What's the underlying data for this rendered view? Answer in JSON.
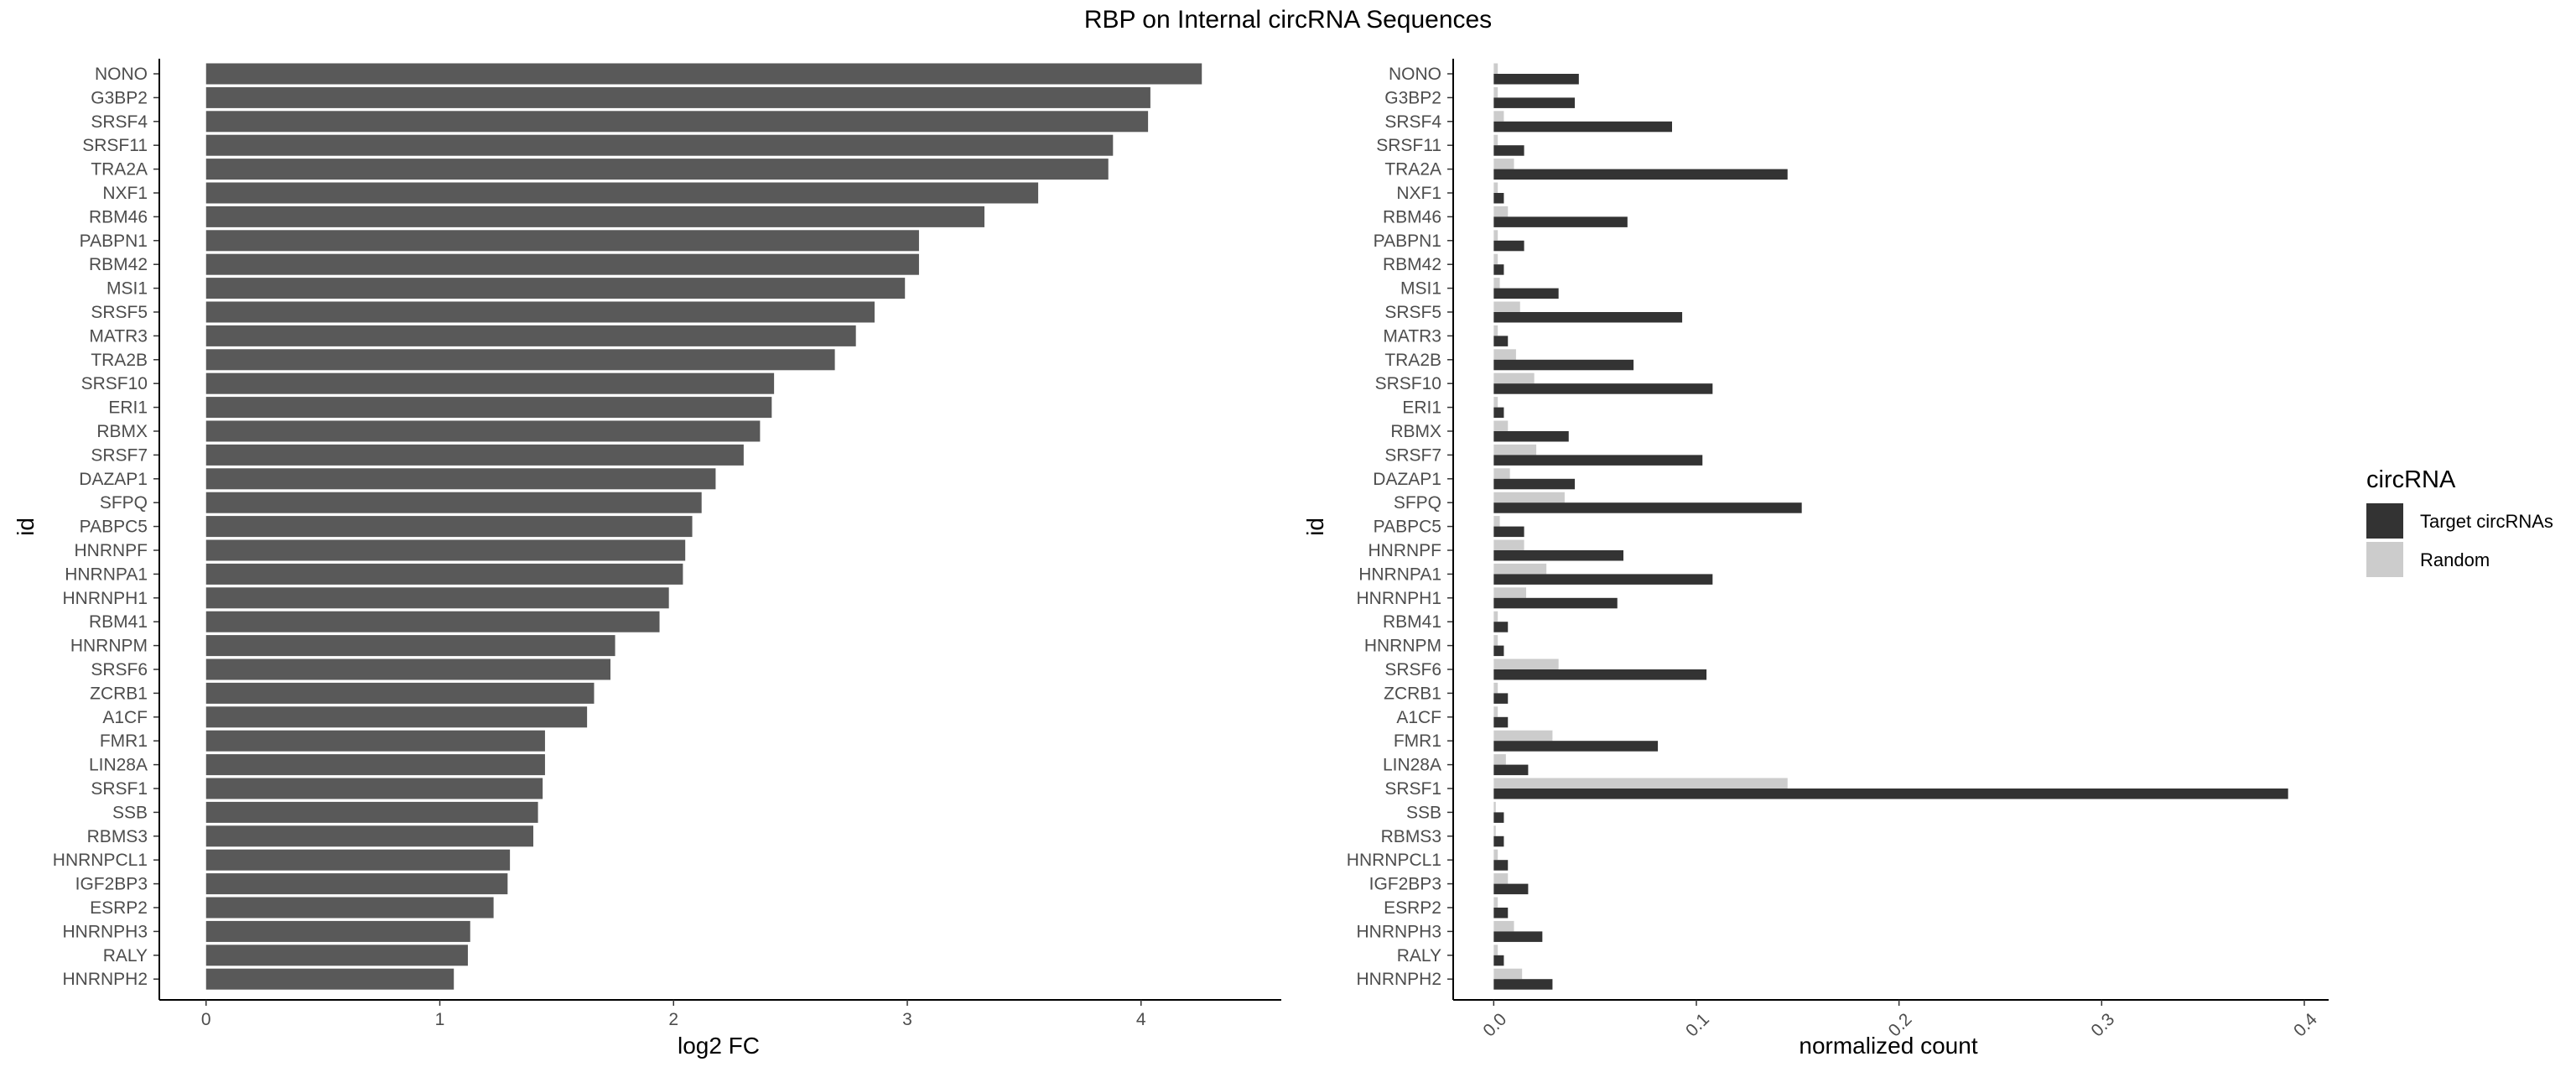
{
  "title": "RBP on Internal circRNA Sequences",
  "chart_data": [
    {
      "type": "bar",
      "orientation": "horizontal",
      "xlabel": "log2 FC",
      "ylabel": "id",
      "xlim": [
        -0.2,
        4.6
      ],
      "xticks": [
        0,
        1,
        2,
        3,
        4
      ],
      "grid": false,
      "bar_color": "#595959",
      "categories": [
        "NONO",
        "G3BP2",
        "SRSF4",
        "SRSF11",
        "TRA2A",
        "NXF1",
        "RBM46",
        "PABPN1",
        "RBM42",
        "MSI1",
        "SRSF5",
        "MATR3",
        "TRA2B",
        "SRSF10",
        "ERI1",
        "RBMX",
        "SRSF7",
        "DAZAP1",
        "SFPQ",
        "PABPC5",
        "HNRNPF",
        "HNRNPA1",
        "HNRNPH1",
        "RBM41",
        "HNRNPM",
        "SRSF6",
        "ZCRB1",
        "A1CF",
        "FMR1",
        "LIN28A",
        "SRSF1",
        "SSB",
        "RBMS3",
        "HNRNPCL1",
        "IGF2BP3",
        "ESRP2",
        "HNRNPH3",
        "RALY",
        "HNRNPH2"
      ],
      "values": [
        4.26,
        4.04,
        4.03,
        3.88,
        3.86,
        3.56,
        3.33,
        3.05,
        3.05,
        2.99,
        2.86,
        2.78,
        2.69,
        2.43,
        2.42,
        2.37,
        2.3,
        2.18,
        2.12,
        2.08,
        2.05,
        2.04,
        1.98,
        1.94,
        1.75,
        1.73,
        1.66,
        1.63,
        1.45,
        1.45,
        1.44,
        1.42,
        1.4,
        1.3,
        1.29,
        1.23,
        1.13,
        1.12,
        1.06
      ]
    },
    {
      "type": "bar",
      "orientation": "horizontal",
      "xlabel": "normalized count",
      "ylabel": "id",
      "xlim": [
        -0.02,
        0.412
      ],
      "xticks": [
        0.0,
        0.1,
        0.2,
        0.3,
        0.4
      ],
      "xtick_labels": [
        "0.0",
        "0.1",
        "0.2",
        "0.3",
        "0.4"
      ],
      "grid": false,
      "legend_position": "right",
      "legend_title": "circRNA",
      "categories": [
        "NONO",
        "G3BP2",
        "SRSF4",
        "SRSF11",
        "TRA2A",
        "NXF1",
        "RBM46",
        "PABPN1",
        "RBM42",
        "MSI1",
        "SRSF5",
        "MATR3",
        "TRA2B",
        "SRSF10",
        "ERI1",
        "RBMX",
        "SRSF7",
        "DAZAP1",
        "SFPQ",
        "PABPC5",
        "HNRNPF",
        "HNRNPA1",
        "HNRNPH1",
        "RBM41",
        "HNRNPM",
        "SRSF6",
        "ZCRB1",
        "A1CF",
        "FMR1",
        "LIN28A",
        "SRSF1",
        "SSB",
        "RBMS3",
        "HNRNPCL1",
        "IGF2BP3",
        "ESRP2",
        "HNRNPH3",
        "RALY",
        "HNRNPH2"
      ],
      "series": [
        {
          "name": "Target circRNAs",
          "color": "#333333",
          "values": [
            0.042,
            0.04,
            0.088,
            0.015,
            0.145,
            0.005,
            0.066,
            0.015,
            0.005,
            0.032,
            0.093,
            0.007,
            0.069,
            0.108,
            0.005,
            0.037,
            0.103,
            0.04,
            0.152,
            0.015,
            0.064,
            0.108,
            0.061,
            0.007,
            0.005,
            0.105,
            0.007,
            0.007,
            0.081,
            0.017,
            0.392,
            0.005,
            0.005,
            0.007,
            0.017,
            0.007,
            0.024,
            0.005,
            0.029
          ]
        },
        {
          "name": "Random",
          "color": "#cccccc",
          "values": [
            0.002,
            0.002,
            0.005,
            0.002,
            0.01,
            0.002,
            0.007,
            0.002,
            0.002,
            0.003,
            0.013,
            0.002,
            0.011,
            0.02,
            0.002,
            0.007,
            0.021,
            0.008,
            0.035,
            0.003,
            0.015,
            0.026,
            0.016,
            0.002,
            0.002,
            0.032,
            0.002,
            0.002,
            0.029,
            0.006,
            0.145,
            0.001,
            0.001,
            0.002,
            0.007,
            0.002,
            0.01,
            0.002,
            0.014
          ]
        }
      ]
    }
  ]
}
